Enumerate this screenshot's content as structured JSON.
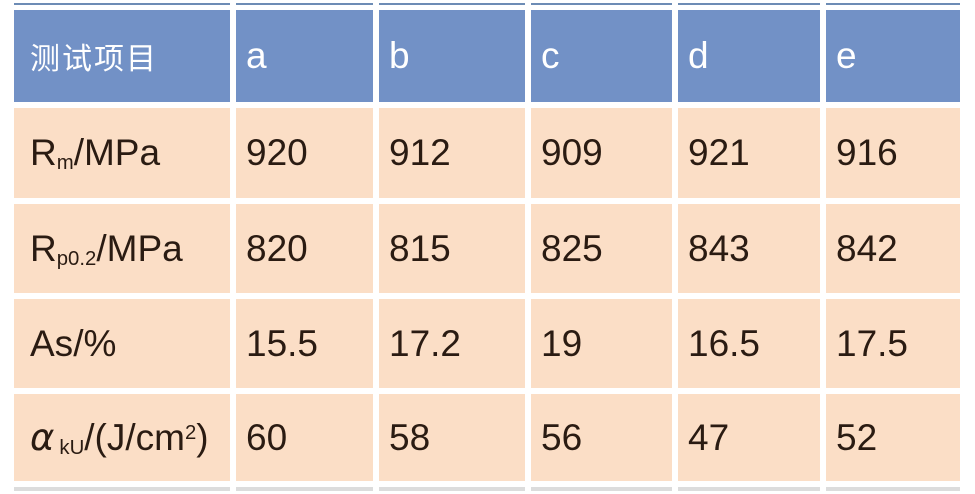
{
  "colors": {
    "header_bg": "#7291C6",
    "row_bg": "#FBDEC6",
    "header_text": "#FFFFFF",
    "body_text": "#2A1B12",
    "top_edge_line": "#6D8CB5",
    "bottom_edge_line": "#DCDCDC",
    "gap": "#FFFFFF"
  },
  "table": {
    "header": {
      "item_label": "测试项目",
      "columns": [
        "a",
        "b",
        "c",
        "d",
        "e"
      ]
    },
    "rows": [
      {
        "label": {
          "base": "R",
          "sub": "m",
          "rest": "/MPa"
        },
        "values": [
          "920",
          "912",
          "909",
          "921",
          "916"
        ]
      },
      {
        "label": {
          "base": "R",
          "sub": "p0.2",
          "rest": "/MPa"
        },
        "values": [
          "820",
          "815",
          "825",
          "843",
          "842"
        ]
      },
      {
        "label": {
          "base": "As",
          "sub": "",
          "rest": "/%"
        },
        "values": [
          "15.5",
          "17.2",
          "19",
          "16.5",
          "17.5"
        ]
      },
      {
        "label": {
          "base": "α",
          "sub": "kU",
          "rest": "/(J/cm",
          "sup": "2",
          "tail": ")"
        },
        "values": [
          "60",
          "58",
          "56",
          "47",
          "52"
        ]
      }
    ]
  }
}
